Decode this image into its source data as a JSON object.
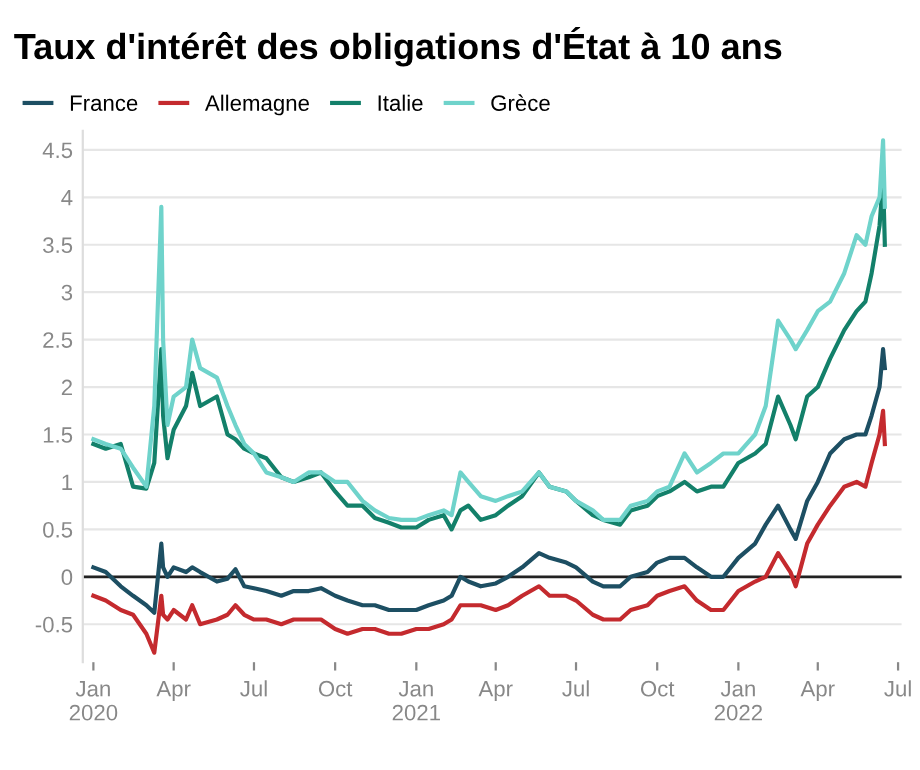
{
  "chart_data": {
    "type": "line",
    "title": "Taux d'intérêt des obligations d'État à 10 ans",
    "x": [
      "2020-01-01",
      "2020-01-15",
      "2020-02-01",
      "2020-02-15",
      "2020-03-01",
      "2020-03-10",
      "2020-03-18",
      "2020-03-20",
      "2020-03-25",
      "2020-04-01",
      "2020-04-15",
      "2020-04-22",
      "2020-05-01",
      "2020-05-20",
      "2020-06-01",
      "2020-06-10",
      "2020-06-20",
      "2020-07-01",
      "2020-07-15",
      "2020-08-01",
      "2020-08-15",
      "2020-09-01",
      "2020-09-15",
      "2020-10-01",
      "2020-10-15",
      "2020-11-01",
      "2020-11-15",
      "2020-12-01",
      "2020-12-15",
      "2021-01-01",
      "2021-01-15",
      "2021-02-01",
      "2021-02-10",
      "2021-02-20",
      "2021-03-01",
      "2021-03-15",
      "2021-04-01",
      "2021-04-15",
      "2021-05-01",
      "2021-05-20",
      "2021-06-01",
      "2021-06-20",
      "2021-07-01",
      "2021-07-20",
      "2021-08-01",
      "2021-08-20",
      "2021-09-01",
      "2021-09-20",
      "2021-10-01",
      "2021-10-15",
      "2021-11-01",
      "2021-11-15",
      "2021-12-01",
      "2021-12-15",
      "2022-01-01",
      "2022-01-20",
      "2022-02-01",
      "2022-02-15",
      "2022-03-01",
      "2022-03-07",
      "2022-03-20",
      "2022-04-01",
      "2022-04-15",
      "2022-05-01",
      "2022-05-15",
      "2022-05-25",
      "2022-06-01",
      "2022-06-10",
      "2022-06-14",
      "2022-06-16"
    ],
    "series": [
      {
        "name": "France",
        "color": "#1d4f63",
        "values": [
          0.1,
          0.05,
          -0.1,
          -0.2,
          -0.3,
          -0.38,
          0.35,
          0.1,
          0.0,
          0.1,
          0.05,
          0.1,
          0.05,
          -0.05,
          -0.02,
          0.08,
          -0.1,
          -0.12,
          -0.15,
          -0.2,
          -0.15,
          -0.15,
          -0.12,
          -0.2,
          -0.25,
          -0.3,
          -0.3,
          -0.35,
          -0.35,
          -0.35,
          -0.3,
          -0.25,
          -0.2,
          0.0,
          -0.05,
          -0.1,
          -0.07,
          0.0,
          0.1,
          0.25,
          0.2,
          0.15,
          0.1,
          -0.05,
          -0.1,
          -0.1,
          0.0,
          0.05,
          0.15,
          0.2,
          0.2,
          0.1,
          0.0,
          0.0,
          0.2,
          0.35,
          0.55,
          0.75,
          0.5,
          0.4,
          0.8,
          1.0,
          1.3,
          1.45,
          1.5,
          1.5,
          1.7,
          2.0,
          2.4,
          2.2
        ]
      },
      {
        "name": "Allemagne",
        "color": "#c42a2e",
        "values": [
          -0.2,
          -0.25,
          -0.35,
          -0.4,
          -0.6,
          -0.8,
          -0.2,
          -0.4,
          -0.45,
          -0.35,
          -0.45,
          -0.3,
          -0.5,
          -0.45,
          -0.4,
          -0.3,
          -0.4,
          -0.45,
          -0.45,
          -0.5,
          -0.45,
          -0.45,
          -0.45,
          -0.55,
          -0.6,
          -0.55,
          -0.55,
          -0.6,
          -0.6,
          -0.55,
          -0.55,
          -0.5,
          -0.45,
          -0.3,
          -0.3,
          -0.3,
          -0.35,
          -0.3,
          -0.2,
          -0.1,
          -0.2,
          -0.2,
          -0.25,
          -0.4,
          -0.45,
          -0.45,
          -0.35,
          -0.3,
          -0.2,
          -0.15,
          -0.1,
          -0.25,
          -0.35,
          -0.35,
          -0.15,
          -0.05,
          0.0,
          0.25,
          0.05,
          -0.1,
          0.35,
          0.55,
          0.75,
          0.95,
          1.0,
          0.95,
          1.2,
          1.5,
          1.75,
          1.4
        ]
      },
      {
        "name": "Italie",
        "color": "#13806a",
        "values": [
          1.4,
          1.35,
          1.4,
          0.95,
          0.93,
          1.2,
          2.4,
          1.7,
          1.25,
          1.55,
          1.8,
          2.15,
          1.8,
          1.9,
          1.5,
          1.45,
          1.35,
          1.3,
          1.25,
          1.05,
          1.0,
          1.05,
          1.1,
          0.9,
          0.75,
          0.75,
          0.62,
          0.57,
          0.52,
          0.52,
          0.6,
          0.65,
          0.5,
          0.7,
          0.75,
          0.6,
          0.65,
          0.75,
          0.85,
          1.1,
          0.95,
          0.9,
          0.8,
          0.65,
          0.6,
          0.55,
          0.7,
          0.75,
          0.85,
          0.9,
          1.0,
          0.9,
          0.95,
          0.95,
          1.2,
          1.3,
          1.4,
          1.9,
          1.6,
          1.45,
          1.9,
          2.0,
          2.3,
          2.6,
          2.8,
          2.9,
          3.2,
          3.7,
          4.2,
          3.5
        ]
      },
      {
        "name": "Grèce",
        "color": "#6fd3cb",
        "values": [
          1.45,
          1.4,
          1.35,
          1.15,
          0.95,
          1.8,
          3.9,
          2.5,
          1.6,
          1.9,
          2.0,
          2.5,
          2.2,
          2.1,
          1.8,
          1.6,
          1.4,
          1.3,
          1.1,
          1.05,
          1.0,
          1.1,
          1.1,
          1.0,
          1.0,
          0.8,
          0.7,
          0.62,
          0.6,
          0.6,
          0.65,
          0.7,
          0.65,
          1.1,
          1.0,
          0.85,
          0.8,
          0.85,
          0.9,
          1.1,
          0.95,
          0.9,
          0.8,
          0.7,
          0.6,
          0.6,
          0.75,
          0.8,
          0.9,
          0.95,
          1.3,
          1.1,
          1.2,
          1.3,
          1.3,
          1.5,
          1.8,
          2.7,
          2.5,
          2.4,
          2.6,
          2.8,
          2.9,
          3.2,
          3.6,
          3.5,
          3.8,
          4.0,
          4.6,
          3.9
        ]
      }
    ],
    "xlim": [
      "2019-12-20",
      "2022-07-05"
    ],
    "xticks": [
      {
        "value": "2020-01-01",
        "label": "Jan\n2020"
      },
      {
        "value": "2020-04-01",
        "label": "Apr"
      },
      {
        "value": "2020-07-01",
        "label": "Jul"
      },
      {
        "value": "2020-10-01",
        "label": "Oct"
      },
      {
        "value": "2021-01-01",
        "label": "Jan\n2021"
      },
      {
        "value": "2021-04-01",
        "label": "Apr"
      },
      {
        "value": "2021-07-01",
        "label": "Jul"
      },
      {
        "value": "2021-10-01",
        "label": "Oct"
      },
      {
        "value": "2022-01-01",
        "label": "Jan\n2022"
      },
      {
        "value": "2022-04-01",
        "label": "Apr"
      },
      {
        "value": "2022-07-01",
        "label": "Jul"
      }
    ],
    "ylim": [
      -0.9,
      4.7
    ],
    "yticks": [
      -0.5,
      0,
      0.5,
      1,
      1.5,
      2,
      2.5,
      3,
      3.5,
      4,
      4.5
    ],
    "ref_lines": [
      {
        "axis": "y",
        "value": 0,
        "color": "#222222"
      }
    ],
    "grid": "y",
    "legend": "top left",
    "marker": "none",
    "line_style": "solid"
  }
}
